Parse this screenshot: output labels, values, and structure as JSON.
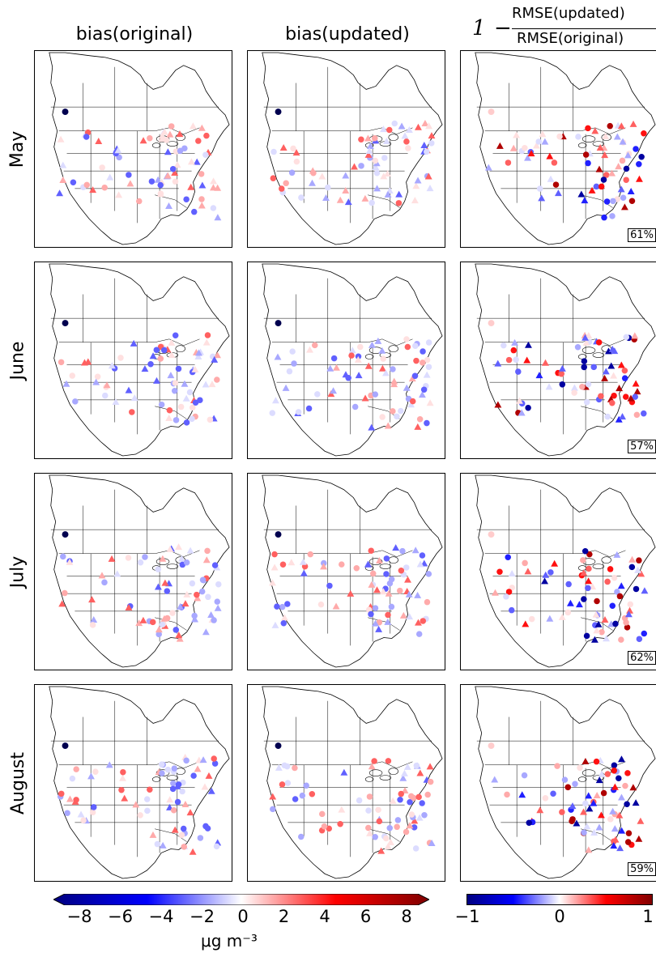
{
  "column_titles": {
    "col1": "bias(original)",
    "col2": "bias(updated)",
    "col3_prefix": "1",
    "col3_numerator": "RMSE(updated)",
    "col3_denominator": "RMSE(original)"
  },
  "rows": [
    {
      "month": "May",
      "improvement_pct": "61%"
    },
    {
      "month": "June",
      "improvement_pct": "57%"
    },
    {
      "month": "July",
      "improvement_pct": "62%"
    },
    {
      "month": "August",
      "improvement_pct": "59%"
    }
  ],
  "colorbar_bias": {
    "ticks": [
      "−8",
      "−6",
      "−4",
      "−2",
      "0",
      "2",
      "4",
      "6",
      "8"
    ],
    "range": [
      -8,
      8
    ],
    "unit": "μg m⁻³",
    "extend": "both"
  },
  "colorbar_rmse": {
    "ticks": [
      "−1",
      "0",
      "1"
    ],
    "range": [
      -1,
      1
    ]
  },
  "colors": {
    "low": "#00007f",
    "mid_low": "#0000ff",
    "center": "#ffffff",
    "mid_high": "#ff0000",
    "high": "#7f0000"
  }
}
